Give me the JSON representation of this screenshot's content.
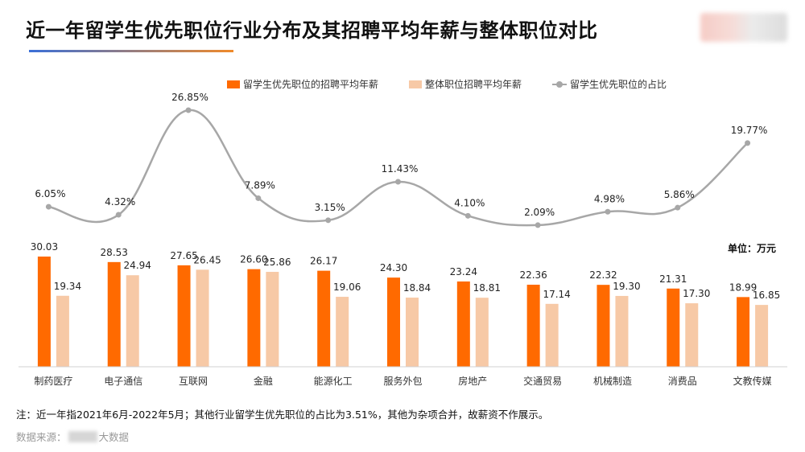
{
  "title": "近一年留学生优先职位行业分布及其招聘平均年薪与整体职位对比",
  "legend": {
    "series_a": "留学生优先职位的招聘平均年薪",
    "series_b": "整体职位招聘平均年薪",
    "series_c": "留学生优先职位的占比"
  },
  "unit_label": "单位：万元",
  "note": "注：近一年指2021年6月-2022年5月；其他行业留学生优先职位的占比为3.51%，其他为杂项合并，故薪资不作展示。",
  "source": {
    "prefix": "数据来源：",
    "suffix": "大数据"
  },
  "colors": {
    "series_a": "#ff6a00",
    "series_b": "#f7c9a6",
    "series_c": "#a7a7a7",
    "title_gradient_start": "#3a6fd8",
    "title_gradient_end": "#f08a2a"
  },
  "chart_data": {
    "type": "bar",
    "categories": [
      "制药医疗",
      "电子通信",
      "互联网",
      "金融",
      "能源化工",
      "服务外包",
      "房地产",
      "交通贸易",
      "机械制造",
      "消费品",
      "文教传媒"
    ],
    "series": [
      {
        "name": "留学生优先职位的招聘平均年薪",
        "type": "bar",
        "values": [
          30.03,
          28.53,
          27.65,
          26.6,
          26.17,
          24.3,
          23.24,
          22.36,
          22.32,
          21.31,
          18.99
        ],
        "labels": [
          "30.03",
          "28.53",
          "27.65",
          "26.60",
          "26.17",
          "24.30",
          "23.24",
          "22.36",
          "22.32",
          "21.31",
          "18.99"
        ]
      },
      {
        "name": "整体职位招聘平均年薪",
        "type": "bar",
        "values": [
          19.34,
          24.94,
          26.45,
          25.86,
          19.06,
          18.84,
          18.81,
          17.14,
          19.3,
          17.3,
          16.85
        ],
        "labels": [
          "19.34",
          "24.94",
          "26.45",
          "25.86",
          "19.06",
          "18.84",
          "18.81",
          "17.14",
          "19.30",
          "17.30",
          "16.85"
        ]
      },
      {
        "name": "留学生优先职位的占比",
        "type": "line",
        "smooth": true,
        "values": [
          6.05,
          4.32,
          26.85,
          7.89,
          3.15,
          11.43,
          4.1,
          2.09,
          4.98,
          5.86,
          19.77
        ],
        "labels": [
          "6.05%",
          "4.32%",
          "26.85%",
          "7.89%",
          "3.15%",
          "11.43%",
          "4.10%",
          "2.09%",
          "4.98%",
          "5.86%",
          "19.77%"
        ]
      }
    ],
    "ylim_bar": [
      0,
      30.03
    ],
    "ylim_line": [
      0,
      26.85
    ],
    "unit": "万元",
    "grid": false,
    "legend_position": "top-right"
  }
}
